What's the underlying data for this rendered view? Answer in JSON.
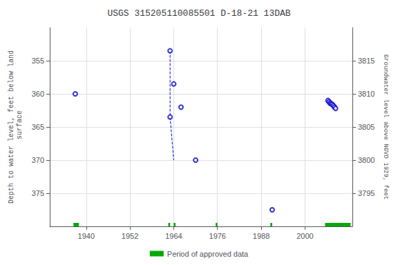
{
  "chart_data": {
    "type": "scatter",
    "title": "USGS 315205110085501 D-18-21 13DAB",
    "y_label": "Depth to water level, feet below land\n surface",
    "y2_label": "Groundwater level above NGVD 1929, feet",
    "xlim": [
      1930,
      2013
    ],
    "xticks": [
      1940,
      1952,
      1964,
      1976,
      1988,
      2000
    ],
    "ylim": [
      380,
      350
    ],
    "yticks": [
      355,
      360,
      365,
      370,
      375
    ],
    "y2lim": [
      3790,
      3820
    ],
    "y2ticks": [
      3795,
      3800,
      3805,
      3810,
      3815
    ],
    "grid": true,
    "legend": "bottom",
    "series": [
      {
        "type": "line",
        "line_style": "dashed",
        "color": "#0000CC",
        "x": [
          1963,
          1963,
          1964
        ],
        "values": [
          353.5,
          363.5,
          370.0
        ]
      },
      {
        "type": "scatter",
        "marker": "open-circle",
        "color": "#0000CC",
        "x": [
          1937,
          1963,
          1963,
          1964,
          1966,
          1970,
          1991
        ],
        "values": [
          360.0,
          353.5,
          363.5,
          358.5,
          362.0,
          370.0,
          377.5
        ]
      },
      {
        "type": "scatter",
        "marker": "open-circle",
        "color": "#0000CC",
        "x": [
          2006.3,
          2006.6,
          2006.9,
          2007.2,
          2007.5,
          2007.8,
          2008.1,
          2008.4
        ],
        "values": [
          361.0,
          361.2,
          361.4,
          361.5,
          361.6,
          361.8,
          362.0,
          362.2
        ]
      },
      {
        "name": "Period of approved data",
        "type": "span",
        "color": "#00AA00",
        "periods": [
          [
            1936.5,
            1938.0
          ],
          [
            1962.5,
            1963.0
          ],
          [
            1964.0,
            1964.5
          ],
          [
            1975.5,
            1976.0
          ],
          [
            1990.5,
            1991.0
          ],
          [
            2005.5,
            2012.5
          ]
        ]
      }
    ]
  }
}
